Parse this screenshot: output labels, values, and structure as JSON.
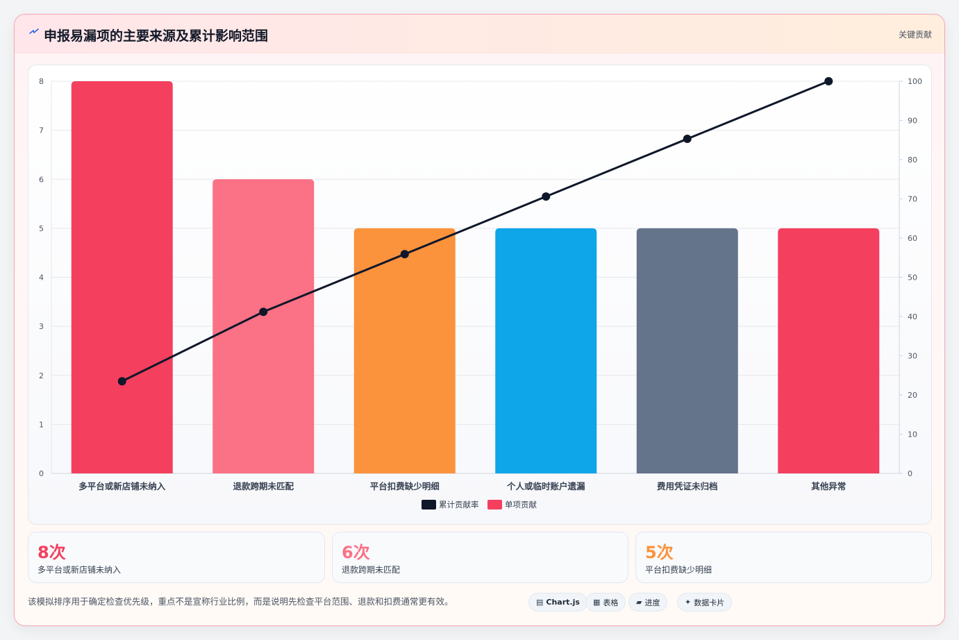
{
  "header": {
    "title": "申报易漏项的主要来源及累计影响范围",
    "badge": "关键贡献",
    "icon": "lightning-icon"
  },
  "chart_data": {
    "type": "bar",
    "categories": [
      "多平台或新店铺未纳入",
      "退款跨期未匹配",
      "平台扣费缺少明细",
      "个人或临时账户遗漏",
      "费用凭证未归档",
      "其他异常"
    ],
    "series": [
      {
        "name": "单项贡献",
        "type": "bar",
        "axis": "left",
        "values": [
          8,
          6,
          5,
          5,
          5,
          5
        ],
        "colors": [
          "#f43f5e",
          "#fb7185",
          "#fb923c",
          "#0ea5e9",
          "#64748b",
          "#f43f5e"
        ]
      },
      {
        "name": "累计贡献率",
        "type": "line",
        "axis": "right",
        "values": [
          23.5,
          41.2,
          55.9,
          70.6,
          85.3,
          100
        ],
        "color": "#0f172a"
      }
    ],
    "y_left": {
      "min": 0,
      "max": 8,
      "ticks": [
        "0",
        "1",
        "2",
        "3",
        "4",
        "5",
        "6",
        "7",
        "8"
      ]
    },
    "y_right": {
      "min": 0,
      "max": 100,
      "ticks": [
        "0",
        "10",
        "20",
        "30",
        "40",
        "50",
        "60",
        "70",
        "80",
        "90",
        "100"
      ]
    },
    "legend": [
      "累计贡献率",
      "单项贡献"
    ],
    "legend_position": "bottom",
    "grid": true
  },
  "stats": [
    {
      "value": "8次",
      "label": "多平台或新店铺未纳入",
      "color": "#f43f5e"
    },
    {
      "value": "6次",
      "label": "退款跨期未匹配",
      "color": "#fb7185"
    },
    {
      "value": "5次",
      "label": "平台扣费缺少明细",
      "color": "#fb923c"
    }
  ],
  "footnote": "该模拟排序用于确定检查优先级，重点不是宣称行业比例，而是说明先检查平台范围、退款和扣费通常更有效。",
  "tags": [
    {
      "icon": "chart-icon",
      "glyph": "▤",
      "label": "Chart.js",
      "bold": true
    },
    {
      "icon": "table-icon",
      "glyph": "▦",
      "label": "表格",
      "bold": false
    },
    {
      "icon": "progress-icon",
      "glyph": "▰",
      "label": "进度",
      "bold": false
    },
    {
      "icon": "sparkle-icon",
      "glyph": "✦",
      "label": "数据卡片",
      "bold": false
    }
  ]
}
